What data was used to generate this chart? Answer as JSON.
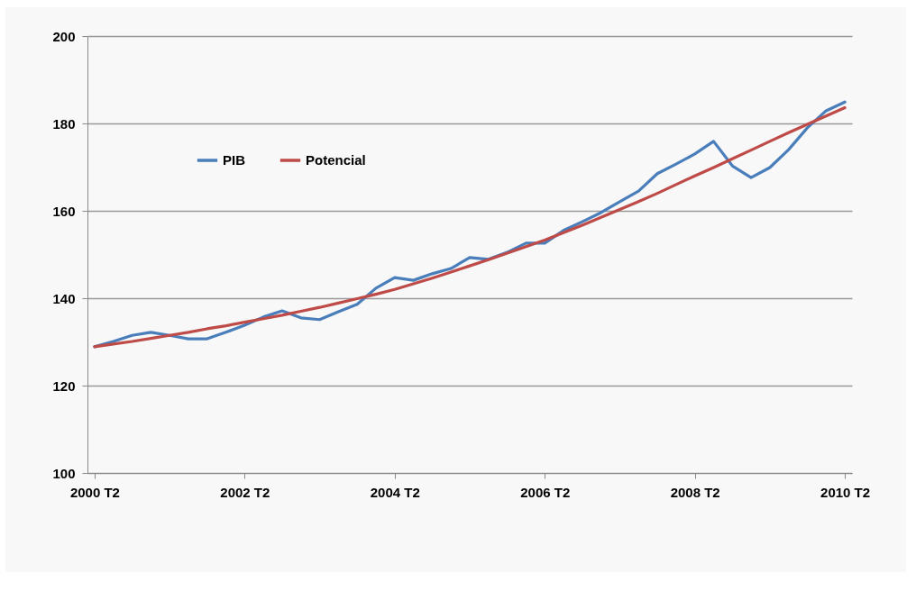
{
  "chart_data": {
    "type": "line",
    "categories": [
      "2000 T2",
      null,
      null,
      null,
      null,
      null,
      null,
      null,
      "2002 T2",
      null,
      null,
      null,
      null,
      null,
      null,
      null,
      "2004 T2",
      null,
      null,
      null,
      null,
      null,
      null,
      null,
      "2006 T2",
      null,
      null,
      null,
      null,
      null,
      null,
      null,
      "2008 T2",
      null,
      null,
      null,
      null,
      null,
      null,
      null,
      "2010 T2"
    ],
    "series": [
      {
        "name": "PIB",
        "color": "#4a7ebb",
        "values": [
          128.9,
          130.1,
          131.5,
          132.2,
          131.5,
          130.7,
          130.7,
          132.2,
          133.8,
          135.7,
          137.1,
          135.5,
          135.1,
          136.9,
          138.6,
          142.3,
          144.7,
          144.1,
          145.6,
          146.8,
          149.3,
          148.9,
          150.5,
          152.6,
          152.6,
          155.5,
          157.5,
          159.6,
          162.1,
          164.5,
          168.5,
          170.7,
          173.0,
          175.9,
          170.3,
          167.6,
          169.9,
          174.0,
          179.0,
          182.9,
          184.9
        ]
      },
      {
        "name": "Potencial",
        "color": "#be4b48",
        "values": [
          128.9,
          129.5,
          130.1,
          130.8,
          131.5,
          132.2,
          133.0,
          133.7,
          134.5,
          135.3,
          136.1,
          137.0,
          137.9,
          138.9,
          139.9,
          140.9,
          142.0,
          143.3,
          144.6,
          146.0,
          147.4,
          148.8,
          150.3,
          151.8,
          153.3,
          155.0,
          156.7,
          158.5,
          160.3,
          162.1,
          164.0,
          166.0,
          168.0,
          169.9,
          171.9,
          173.9,
          175.9,
          177.9,
          179.8,
          181.7,
          183.6
        ]
      }
    ],
    "ylim": [
      100,
      200
    ],
    "yticks": [
      100,
      120,
      140,
      160,
      180,
      200
    ],
    "grid": "y",
    "legend": "top left"
  }
}
